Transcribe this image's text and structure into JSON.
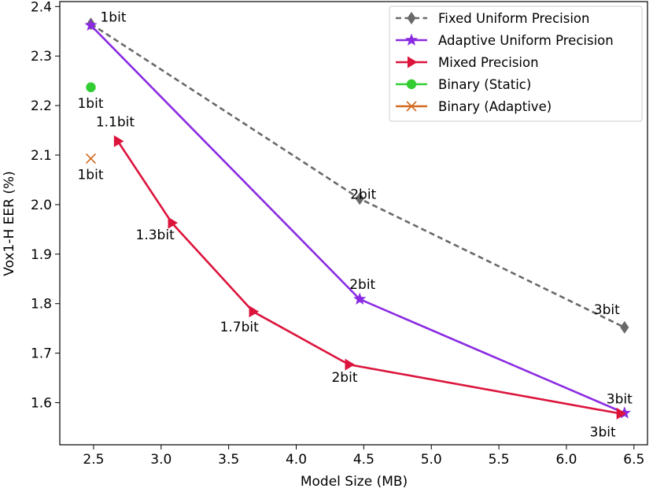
{
  "chart_data": {
    "type": "line",
    "title": "",
    "xlabel": "Model Size (MB)",
    "ylabel": "Vox1-H EER (%)",
    "xlim": [
      2.25,
      6.6
    ],
    "ylim": [
      1.515,
      2.41
    ],
    "grid": false,
    "legend_position": "top-right",
    "xticks": [
      {
        "value": 2.5,
        "label": "2.5"
      },
      {
        "value": 3.0,
        "label": "3.0"
      },
      {
        "value": 3.5,
        "label": "3.5"
      },
      {
        "value": 4.0,
        "label": "4.0"
      },
      {
        "value": 4.5,
        "label": "4.5"
      },
      {
        "value": 5.0,
        "label": "5.0"
      },
      {
        "value": 5.5,
        "label": "5.5"
      },
      {
        "value": 6.0,
        "label": "6.0"
      },
      {
        "value": 6.5,
        "label": "6.5"
      }
    ],
    "yticks": [
      {
        "value": 1.6,
        "label": "1.6"
      },
      {
        "value": 1.7,
        "label": "1.7"
      },
      {
        "value": 1.8,
        "label": "1.8"
      },
      {
        "value": 1.9,
        "label": "1.9"
      },
      {
        "value": 2.0,
        "label": "2.0"
      },
      {
        "value": 2.1,
        "label": "2.1"
      },
      {
        "value": 2.2,
        "label": "2.2"
      },
      {
        "value": 2.3,
        "label": "2.3"
      },
      {
        "value": 2.4,
        "label": "2.4"
      }
    ],
    "series": [
      {
        "name": "Fixed Uniform Precision",
        "color": "#696969",
        "marker": "diamond",
        "line_style": "dashed",
        "points": [
          {
            "x": 2.48,
            "y": 2.365,
            "label": "1bit"
          },
          {
            "x": 4.47,
            "y": 2.012,
            "label": "2bit"
          },
          {
            "x": 6.43,
            "y": 1.752,
            "label": "3bit"
          }
        ]
      },
      {
        "name": "Adaptive Uniform Precision",
        "color": "#8A2BE2",
        "marker": "star",
        "line_style": "solid",
        "points": [
          {
            "x": 2.48,
            "y": 2.362,
            "label": ""
          },
          {
            "x": 4.47,
            "y": 1.809,
            "label": "2bit"
          },
          {
            "x": 6.43,
            "y": 1.579,
            "label": "3bit"
          }
        ]
      },
      {
        "name": "Mixed Precision",
        "color": "#DC143C",
        "marker": "triangle-right",
        "line_style": "solid",
        "points": [
          {
            "x": 2.68,
            "y": 2.128,
            "label": "1.1bit"
          },
          {
            "x": 3.08,
            "y": 1.963,
            "label": "1.3bit"
          },
          {
            "x": 3.68,
            "y": 1.784,
            "label": "1.7bit"
          },
          {
            "x": 4.39,
            "y": 1.677,
            "label": "2bit"
          },
          {
            "x": 6.4,
            "y": 1.578,
            "label": "3bit"
          }
        ]
      },
      {
        "name": "Binary (Static)",
        "color": "#32CD32",
        "marker": "circle",
        "line_style": "none",
        "points": [
          {
            "x": 2.48,
            "y": 2.237,
            "label": "1bit"
          }
        ]
      },
      {
        "name": "Binary (Adaptive)",
        "color": "#D2691E",
        "marker": "x",
        "line_style": "none",
        "points": [
          {
            "x": 2.48,
            "y": 2.093,
            "label": "1bit"
          }
        ]
      }
    ]
  }
}
